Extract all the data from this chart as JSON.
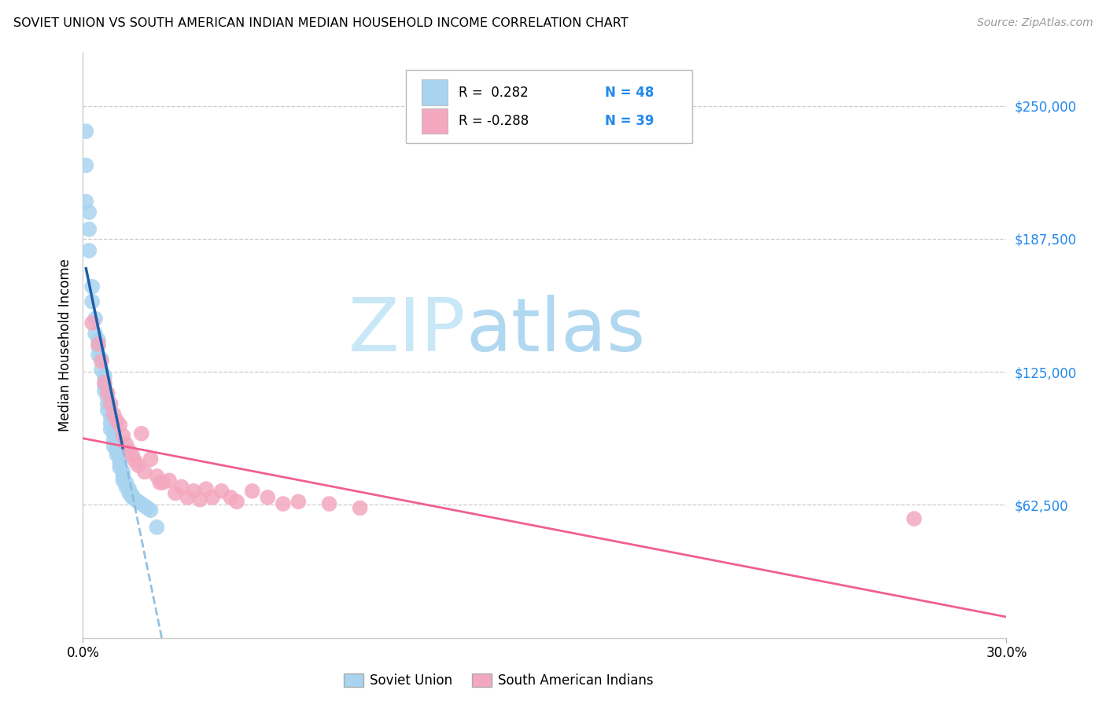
{
  "title": "SOVIET UNION VS SOUTH AMERICAN INDIAN MEDIAN HOUSEHOLD INCOME CORRELATION CHART",
  "source": "Source: ZipAtlas.com",
  "ylabel": "Median Household Income",
  "ytick_values": [
    62500,
    125000,
    187500,
    250000
  ],
  "ytick_labels": [
    "$62,500",
    "$125,000",
    "$187,500",
    "$250,000"
  ],
  "ylim": [
    0,
    275000
  ],
  "xlim": [
    0.0,
    0.3
  ],
  "xtick_positions": [
    0.0,
    0.3
  ],
  "xtick_labels": [
    "0.0%",
    "30.0%"
  ],
  "legend_label1": "Soviet Union",
  "legend_label2": "South American Indians",
  "r1": " 0.282",
  "n1": "48",
  "r2": "-0.288",
  "n2": "39",
  "color_blue": "#A8D4F0",
  "color_pink": "#F4A8C0",
  "trendline_blue_solid": "#1E5FA8",
  "trendline_blue_dash": "#88BBE0",
  "trendline_pink": "#F06090",
  "watermark_zip_color": "#C8E8F8",
  "watermark_atlas_color": "#B0D8F0",
  "blue_x": [
    0.001,
    0.001,
    0.001,
    0.002,
    0.002,
    0.002,
    0.003,
    0.003,
    0.004,
    0.004,
    0.005,
    0.005,
    0.005,
    0.006,
    0.006,
    0.007,
    0.007,
    0.007,
    0.008,
    0.008,
    0.008,
    0.009,
    0.009,
    0.009,
    0.01,
    0.01,
    0.01,
    0.011,
    0.011,
    0.012,
    0.012,
    0.012,
    0.013,
    0.013,
    0.013,
    0.014,
    0.014,
    0.015,
    0.015,
    0.016,
    0.016,
    0.017,
    0.018,
    0.019,
    0.02,
    0.021,
    0.022,
    0.024
  ],
  "blue_y": [
    238000,
    222000,
    205000,
    200000,
    192000,
    182000,
    165000,
    158000,
    150000,
    143000,
    140000,
    137000,
    133000,
    131000,
    126000,
    123000,
    119000,
    116000,
    113000,
    110000,
    107000,
    104000,
    101000,
    98000,
    96000,
    93000,
    90000,
    88000,
    86000,
    84000,
    82000,
    80000,
    78000,
    76000,
    74000,
    73000,
    71000,
    70000,
    68000,
    67000,
    66000,
    65000,
    64000,
    63000,
    62000,
    61000,
    60000,
    52000
  ],
  "pink_x": [
    0.003,
    0.005,
    0.006,
    0.007,
    0.008,
    0.009,
    0.01,
    0.011,
    0.012,
    0.013,
    0.014,
    0.015,
    0.016,
    0.017,
    0.018,
    0.019,
    0.02,
    0.022,
    0.024,
    0.025,
    0.026,
    0.028,
    0.03,
    0.032,
    0.034,
    0.036,
    0.038,
    0.04,
    0.042,
    0.045,
    0.048,
    0.05,
    0.055,
    0.06,
    0.065,
    0.07,
    0.08,
    0.09,
    0.27
  ],
  "pink_y": [
    148000,
    138000,
    130000,
    120000,
    115000,
    110000,
    105000,
    102000,
    100000,
    95000,
    91000,
    88000,
    86000,
    83000,
    81000,
    96000,
    78000,
    84000,
    76000,
    73000,
    73000,
    74000,
    68000,
    71000,
    66000,
    69000,
    65000,
    70000,
    66000,
    69000,
    66000,
    64000,
    69000,
    66000,
    63000,
    64000,
    63000,
    61000,
    56000
  ]
}
